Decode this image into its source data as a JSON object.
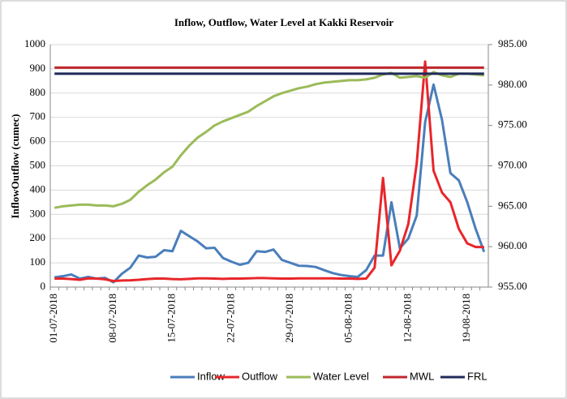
{
  "chart_data": {
    "type": "line",
    "title": "Inflow, Outflow, Water Level at Kakki Reservoir",
    "y_label": "InflowOutflow (cumec)",
    "categories": [
      "01-07-2018",
      null,
      null,
      null,
      null,
      null,
      null,
      "08-07-2018",
      null,
      null,
      null,
      null,
      null,
      null,
      "15-07-2018",
      null,
      null,
      null,
      null,
      null,
      null,
      "22-07-2018",
      null,
      null,
      null,
      null,
      null,
      null,
      "29-07-2018",
      null,
      null,
      null,
      null,
      null,
      null,
      "05-08-2018",
      null,
      null,
      null,
      null,
      null,
      null,
      "12-08-2018",
      null,
      null,
      null,
      null,
      null,
      null,
      "19-08-2018",
      null,
      null
    ],
    "ylim": [
      0,
      1000
    ],
    "yticks": [
      0,
      100,
      200,
      300,
      400,
      500,
      600,
      700,
      800,
      900,
      1000
    ],
    "y2lim": [
      955,
      985
    ],
    "y2ticks": [
      {
        "value": 955,
        "label": "955.00"
      },
      {
        "value": 960,
        "label": "960.00"
      },
      {
        "value": 965,
        "label": "965.00"
      },
      {
        "value": 970,
        "label": "970.00"
      },
      {
        "value": 975,
        "label": "975.00"
      },
      {
        "value": 980,
        "label": "980.00"
      },
      {
        "value": 985,
        "label": "985.00"
      }
    ],
    "legend": "bottom",
    "series": [
      {
        "name": "Inflow",
        "color": "#4a7ebb",
        "values": [
          40,
          45,
          52,
          35,
          42,
          35,
          38,
          20,
          55,
          80,
          130,
          122,
          125,
          152,
          148,
          232,
          210,
          188,
          160,
          162,
          120,
          105,
          92,
          100,
          148,
          145,
          155,
          112,
          100,
          88,
          87,
          83,
          70,
          58,
          50,
          45,
          42,
          70,
          130,
          130,
          350,
          160,
          200,
          295,
          680,
          835,
          690,
          470,
          440,
          350,
          240,
          145
        ]
      },
      {
        "name": "Outflow",
        "color": "#e8262a",
        "values": [
          35,
          35,
          33,
          30,
          36,
          35,
          32,
          25,
          27,
          28,
          30,
          33,
          35,
          35,
          33,
          32,
          34,
          36,
          36,
          35,
          34,
          35,
          35,
          36,
          37,
          37,
          36,
          35,
          35,
          36,
          36,
          36,
          36,
          36,
          35,
          35,
          34,
          35,
          80,
          450,
          90,
          150,
          260,
          510,
          930,
          480,
          390,
          350,
          240,
          180,
          165,
          165
        ]
      },
      {
        "name": "Water Level",
        "color": "#9bbb59",
        "axis": "y2",
        "values": [
          964.8,
          965.0,
          965.1,
          965.2,
          965.2,
          965.1,
          965.1,
          965.0,
          965.3,
          965.8,
          966.8,
          967.6,
          968.3,
          969.2,
          969.9,
          971.3,
          972.5,
          973.5,
          974.2,
          975.0,
          975.5,
          975.9,
          976.3,
          976.7,
          977.4,
          978.0,
          978.6,
          979.0,
          979.3,
          979.6,
          979.8,
          980.1,
          980.3,
          980.4,
          980.5,
          980.6,
          980.6,
          980.7,
          980.9,
          981.3,
          981.5,
          980.9,
          981.0,
          981.1,
          980.9,
          981.6,
          981.2,
          981.0,
          981.4,
          981.4,
          981.3,
          981.2
        ]
      },
      {
        "name": "MWL",
        "color": "#c0272d",
        "axis": "y2",
        "values": [
          982.15,
          982.15,
          982.15,
          982.15,
          982.15,
          982.15,
          982.15,
          982.15,
          982.15,
          982.15,
          982.15,
          982.15,
          982.15,
          982.15,
          982.15,
          982.15,
          982.15,
          982.15,
          982.15,
          982.15,
          982.15,
          982.15,
          982.15,
          982.15,
          982.15,
          982.15,
          982.15,
          982.15,
          982.15,
          982.15,
          982.15,
          982.15,
          982.15,
          982.15,
          982.15,
          982.15,
          982.15,
          982.15,
          982.15,
          982.15,
          982.15,
          982.15,
          982.15,
          982.15,
          982.15,
          982.15,
          982.15,
          982.15,
          982.15,
          982.15,
          982.15,
          982.15
        ]
      },
      {
        "name": "FRL",
        "color": "#1f2a5a",
        "axis": "y2",
        "values": [
          981.4,
          981.4,
          981.4,
          981.4,
          981.4,
          981.4,
          981.4,
          981.4,
          981.4,
          981.4,
          981.4,
          981.4,
          981.4,
          981.4,
          981.4,
          981.4,
          981.4,
          981.4,
          981.4,
          981.4,
          981.4,
          981.4,
          981.4,
          981.4,
          981.4,
          981.4,
          981.4,
          981.4,
          981.4,
          981.4,
          981.4,
          981.4,
          981.4,
          981.4,
          981.4,
          981.4,
          981.4,
          981.4,
          981.4,
          981.4,
          981.4,
          981.4,
          981.4,
          981.4,
          981.4,
          981.4,
          981.4,
          981.4,
          981.4,
          981.4,
          981.4,
          981.4
        ]
      }
    ]
  }
}
